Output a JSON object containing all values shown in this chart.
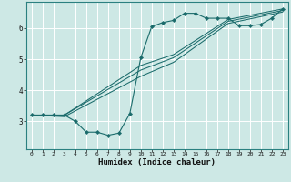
{
  "xlabel": "Humidex (Indice chaleur)",
  "bg_color": "#cde8e5",
  "line_color": "#1a6b6b",
  "grid_color": "#ffffff",
  "xlim": [
    -0.5,
    23.5
  ],
  "ylim": [
    2.1,
    6.85
  ],
  "yticks": [
    3,
    4,
    5,
    6
  ],
  "xticks": [
    0,
    1,
    2,
    3,
    4,
    5,
    6,
    7,
    8,
    9,
    10,
    11,
    12,
    13,
    14,
    15,
    16,
    17,
    18,
    19,
    20,
    21,
    22,
    23
  ],
  "lines": [
    {
      "x": [
        0,
        1,
        2,
        3,
        4,
        5,
        6,
        7,
        8,
        9,
        10,
        11,
        12,
        13,
        14,
        15,
        16,
        17,
        18,
        19,
        20,
        21,
        22,
        23
      ],
      "y": [
        3.2,
        3.2,
        3.2,
        3.2,
        3.0,
        2.65,
        2.65,
        2.55,
        2.62,
        3.25,
        5.05,
        6.05,
        6.18,
        6.25,
        6.48,
        6.48,
        6.32,
        6.32,
        6.32,
        6.08,
        6.08,
        6.12,
        6.32,
        6.62
      ],
      "marker": true
    },
    {
      "x": [
        0,
        3,
        10,
        13,
        18,
        23
      ],
      "y": [
        3.2,
        3.2,
        4.8,
        5.15,
        6.28,
        6.62
      ],
      "marker": false
    },
    {
      "x": [
        0,
        3,
        10,
        13,
        18,
        23
      ],
      "y": [
        3.2,
        3.2,
        4.65,
        5.05,
        6.22,
        6.57
      ],
      "marker": false
    },
    {
      "x": [
        0,
        3,
        10,
        13,
        18,
        23
      ],
      "y": [
        3.2,
        3.15,
        4.45,
        4.9,
        6.15,
        6.52
      ],
      "marker": false
    }
  ]
}
